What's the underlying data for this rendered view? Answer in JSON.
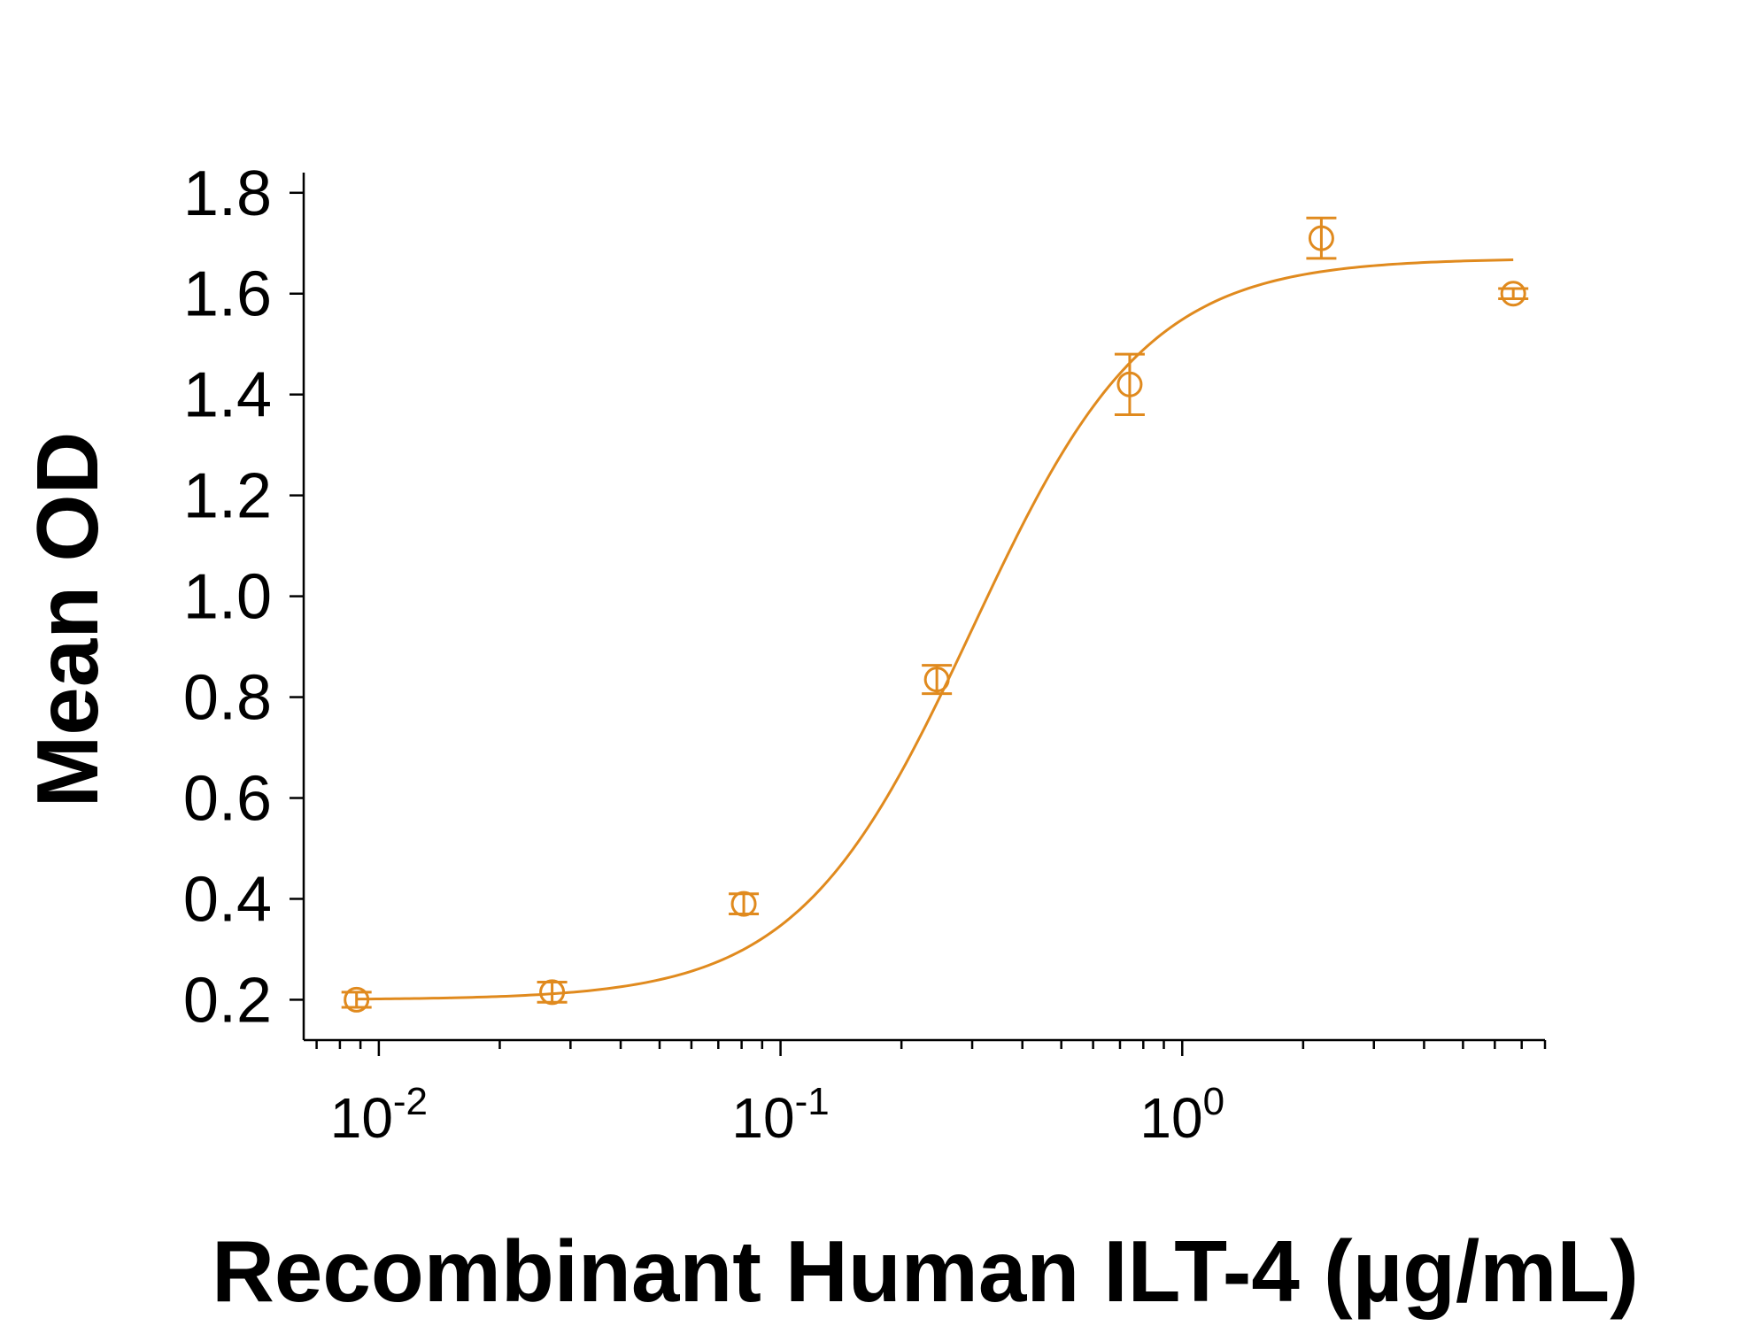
{
  "chart_data": {
    "type": "scatter",
    "xlabel": "Recombinant Human ILT-4 (µg/mL)",
    "ylabel": "Mean OD",
    "x_scale": "log",
    "xlim": [
      0.0065,
      8
    ],
    "ylim": [
      0.12,
      1.84
    ],
    "y_ticks": [
      "0.2",
      "0.4",
      "0.6",
      "0.8",
      "1.0",
      "1.2",
      "1.4",
      "1.6",
      "1.8"
    ],
    "x_ticks": [
      {
        "base": "10",
        "exp": "-2",
        "value": 0.01
      },
      {
        "base": "10",
        "exp": "-1",
        "value": 0.1
      },
      {
        "base": "10",
        "exp": "0",
        "value": 1
      }
    ],
    "grid": false,
    "color": "#E08A1E",
    "series": [
      {
        "points": [
          {
            "x": 0.0088,
            "y": 0.2,
            "err": 0.015
          },
          {
            "x": 0.027,
            "y": 0.215,
            "err": 0.02
          },
          {
            "x": 0.081,
            "y": 0.39,
            "err": 0.02
          },
          {
            "x": 0.245,
            "y": 0.835,
            "err": 0.028
          },
          {
            "x": 0.74,
            "y": 1.42,
            "err": 0.06
          },
          {
            "x": 2.22,
            "y": 1.71,
            "err": 0.04
          },
          {
            "x": 6.67,
            "y": 1.6,
            "err": 0.01
          }
        ],
        "fit": {
          "model": "4PL",
          "bottom": 0.2,
          "top": 1.67,
          "ec50": 0.3,
          "hill": 2.0
        }
      }
    ]
  }
}
